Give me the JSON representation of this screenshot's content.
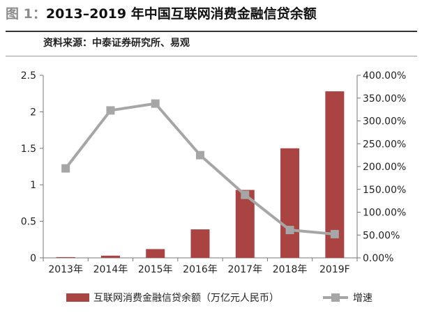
{
  "header": {
    "figure_label": "图 1：",
    "title": "2013–2019 年中国互联网消费金融信贷余额",
    "source": "资料来源：中泰证券研究所、易观"
  },
  "chart_data": {
    "type": "bar",
    "categories": [
      "2013年",
      "2014年",
      "2015年",
      "2016年",
      "2017年",
      "2018年",
      "2019F"
    ],
    "series": [
      {
        "name": "互联网消费金融信贷余额（万亿元人民币）",
        "type": "bar",
        "axis": "left",
        "color": "#a94442",
        "values": [
          0.01,
          0.03,
          0.12,
          0.39,
          0.93,
          1.5,
          2.28
        ]
      },
      {
        "name": "增速",
        "type": "line",
        "axis": "right",
        "color": "#a6a6a6",
        "marker": "square",
        "values": [
          196,
          323,
          338,
          225,
          138,
          61,
          52
        ]
      }
    ],
    "left_axis": {
      "min": 0,
      "max": 2.5,
      "ticks": [
        0,
        0.5,
        1,
        1.5,
        2,
        2.5
      ],
      "tick_labels": [
        "0",
        "0.5",
        "1",
        "1.5",
        "2",
        "2.5"
      ]
    },
    "right_axis": {
      "min": 0,
      "max": 400,
      "ticks": [
        0,
        50,
        100,
        150,
        200,
        250,
        300,
        350,
        400
      ],
      "tick_labels": [
        "0.00%",
        "50.00%",
        "100.00%",
        "150.00%",
        "200.00%",
        "250.00%",
        "300.00%",
        "350.00%",
        "400.00%"
      ]
    },
    "grid": false,
    "legend_position": "bottom"
  }
}
